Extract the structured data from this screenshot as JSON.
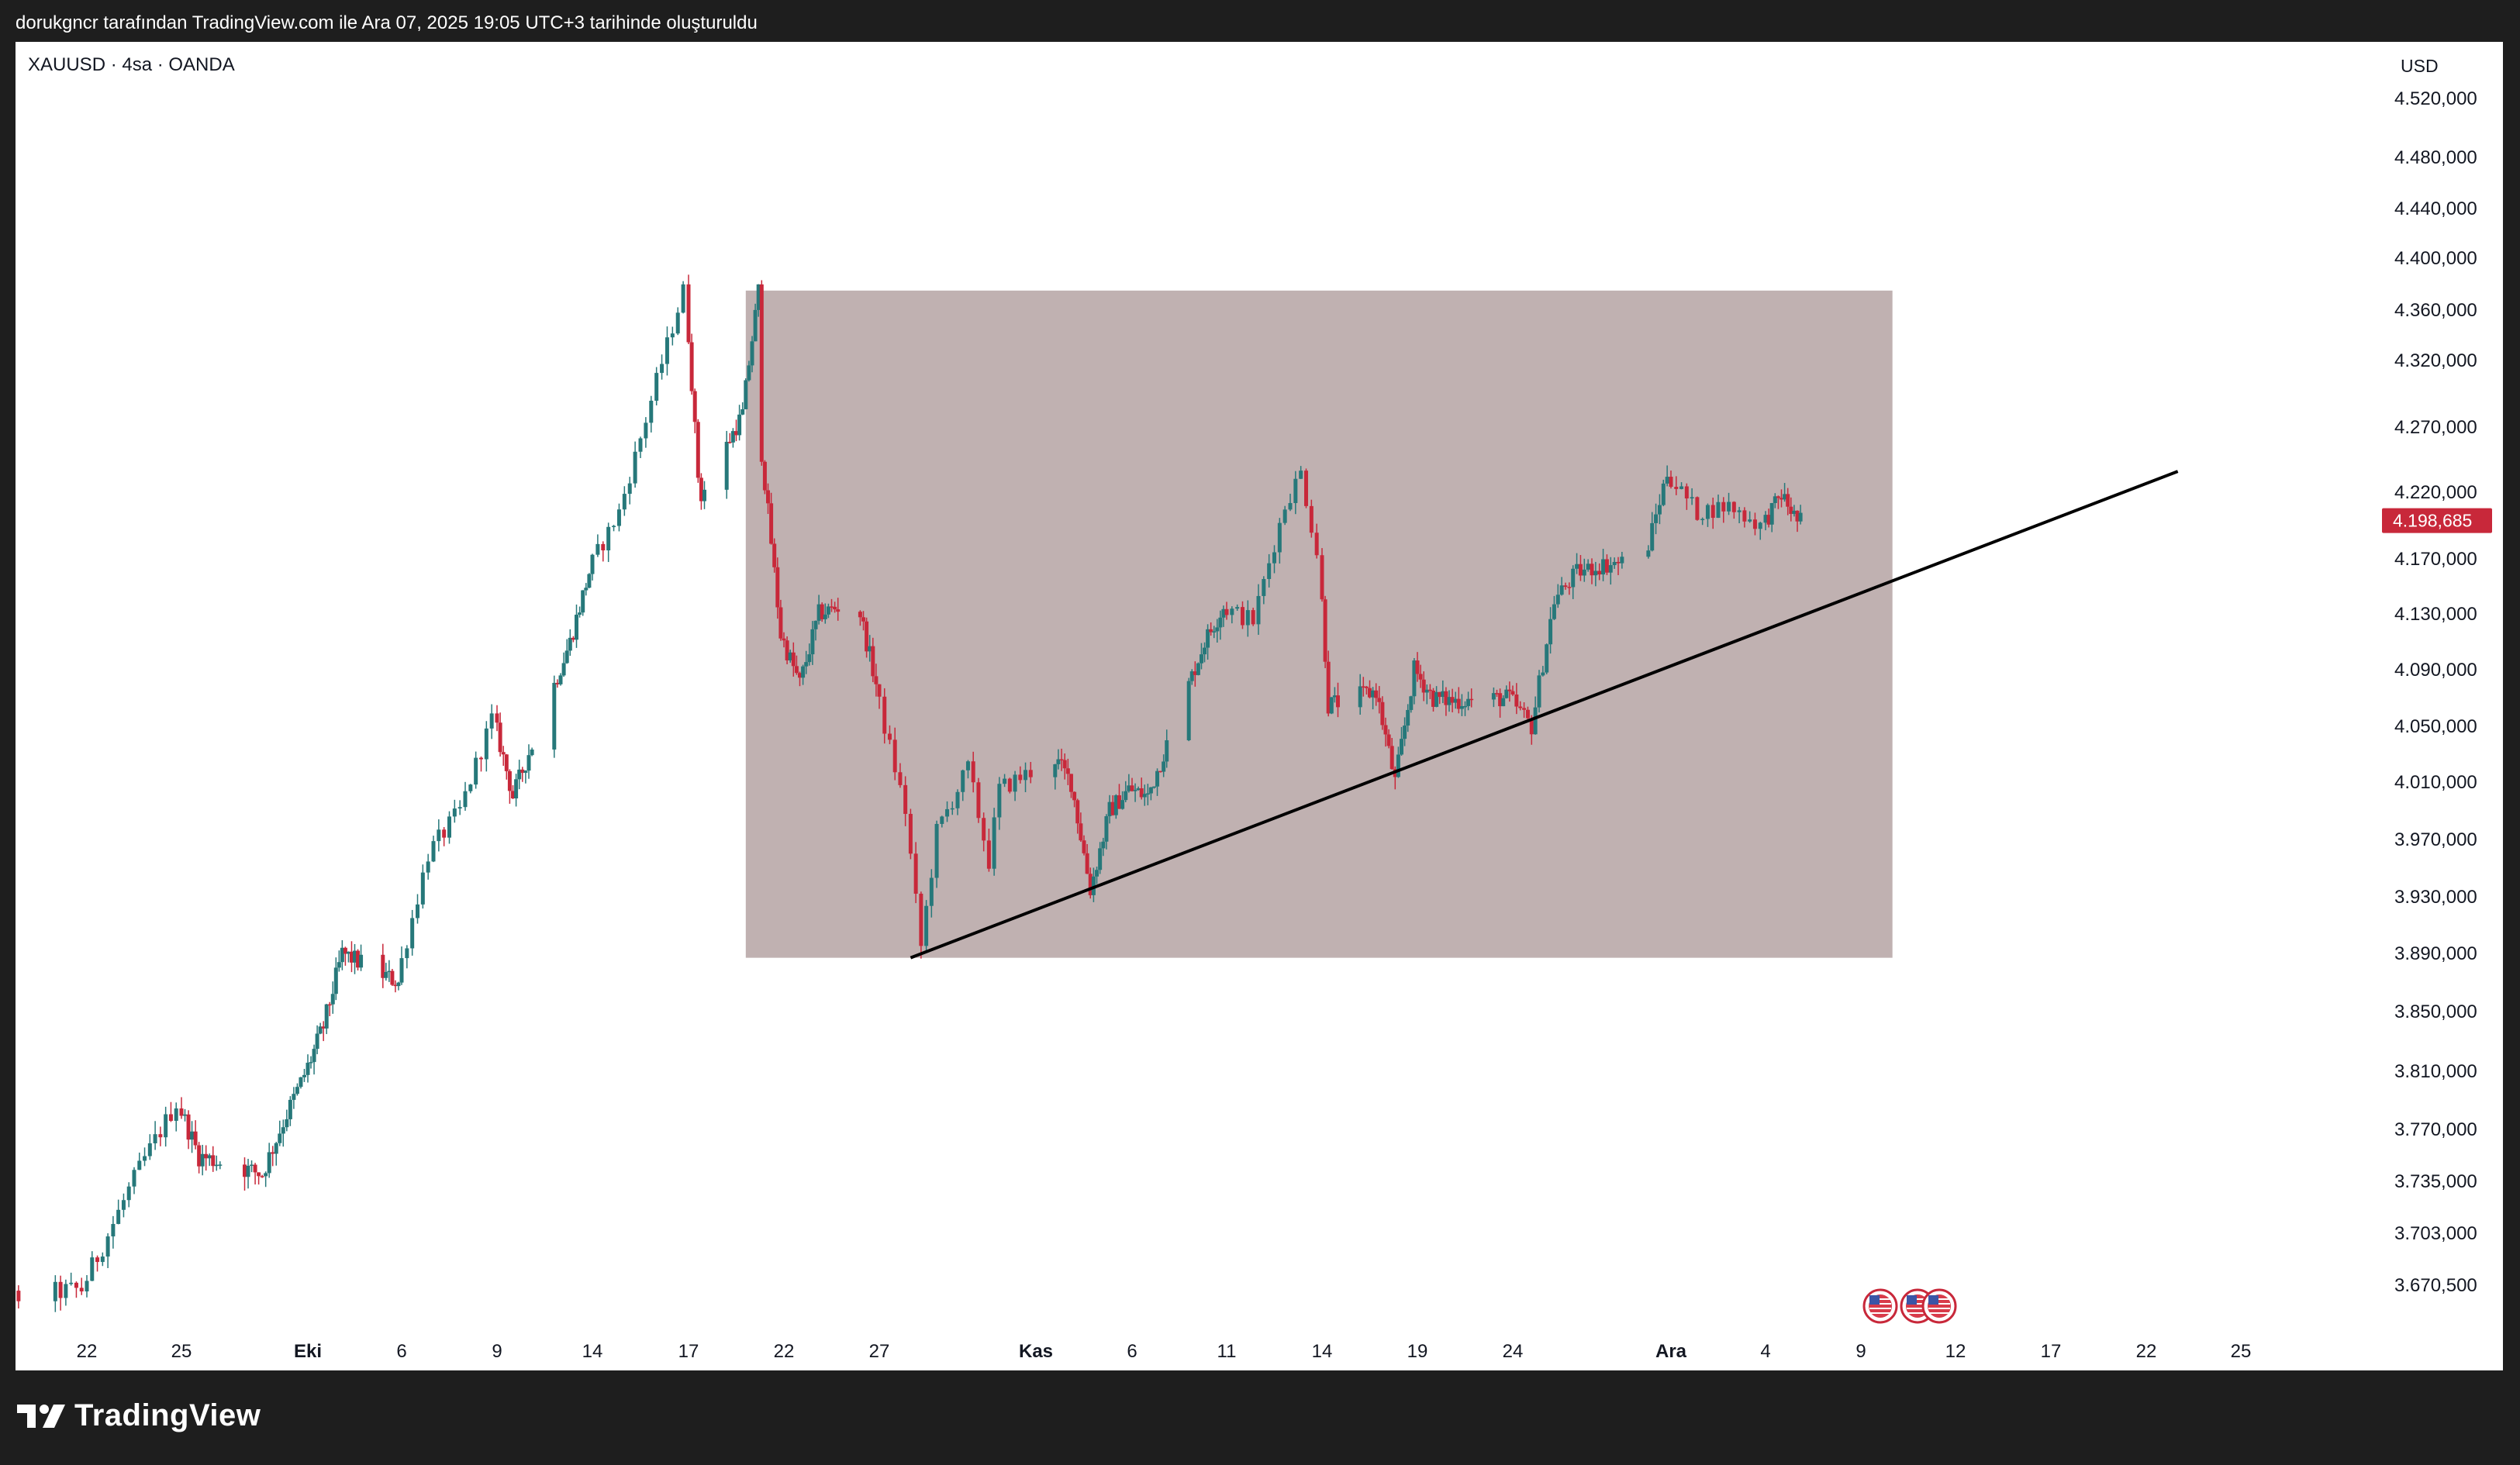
{
  "caption": "dorukgncr tarafından TradingView.com ile Ara 07, 2025 19:05 UTC+3 tarihinde oluşturuldu",
  "brand": "TradingView",
  "colors": {
    "background": "#1e1e1e",
    "up": "#26787a",
    "down": "#c8283a",
    "zone": "#c0b1b1",
    "price_tag": "#c8283a",
    "trendline": "#000000"
  },
  "chart_data": {
    "type": "candlestick",
    "title": "XAUUSD · 4sa · OANDA",
    "currency": "USD",
    "last_price": 4198.685,
    "last_price_label": "4.198,685",
    "y_axis": {
      "ylim": [
        3650,
        4540
      ],
      "ticks": [
        {
          "v": 4520,
          "label": "4.520,000"
        },
        {
          "v": 4480,
          "label": "4.480,000"
        },
        {
          "v": 4440,
          "label": "4.440,000"
        },
        {
          "v": 4400,
          "label": "4.400,000"
        },
        {
          "v": 4360,
          "label": "4.360,000"
        },
        {
          "v": 4320,
          "label": "4.320,000"
        },
        {
          "v": 4270,
          "label": "4.270,000"
        },
        {
          "v": 4220,
          "label": "4.220,000"
        },
        {
          "v": 4170,
          "label": "4.170,000"
        },
        {
          "v": 4130,
          "label": "4.130,000"
        },
        {
          "v": 4090,
          "label": "4.090,000"
        },
        {
          "v": 4050,
          "label": "4.050,000"
        },
        {
          "v": 4010,
          "label": "4.010,000"
        },
        {
          "v": 3970,
          "label": "3.970,000"
        },
        {
          "v": 3930,
          "label": "3.930,000"
        },
        {
          "v": 3890,
          "label": "3.890,000"
        },
        {
          "v": 3850,
          "label": "3.850,000"
        },
        {
          "v": 3810,
          "label": "3.810,000"
        },
        {
          "v": 3770,
          "label": "3.770,000"
        },
        {
          "v": 3735,
          "label": "3.735,000"
        },
        {
          "v": 3703,
          "label": "3.703,000"
        },
        {
          "v": 3670.5,
          "label": "3.670,500"
        }
      ]
    },
    "x_axis": {
      "ticks": [
        {
          "date": "2025-09-22",
          "label": "22",
          "bold": false
        },
        {
          "date": "2025-09-25",
          "label": "25",
          "bold": false
        },
        {
          "date": "2025-10-01",
          "label": "Eki",
          "bold": true
        },
        {
          "date": "2025-10-06",
          "label": "6",
          "bold": false
        },
        {
          "date": "2025-10-09",
          "label": "9",
          "bold": false
        },
        {
          "date": "2025-10-14",
          "label": "14",
          "bold": false
        },
        {
          "date": "2025-10-17",
          "label": "17",
          "bold": false
        },
        {
          "date": "2025-10-22",
          "label": "22",
          "bold": false
        },
        {
          "date": "2025-10-27",
          "label": "27",
          "bold": false
        },
        {
          "date": "2025-11-01",
          "label": "Kas",
          "bold": true
        },
        {
          "date": "2025-11-06",
          "label": "6",
          "bold": false
        },
        {
          "date": "2025-11-11",
          "label": "11",
          "bold": false
        },
        {
          "date": "2025-11-14",
          "label": "14",
          "bold": false
        },
        {
          "date": "2025-11-19",
          "label": "19",
          "bold": false
        },
        {
          "date": "2025-11-24",
          "label": "24",
          "bold": false
        },
        {
          "date": "2025-12-01",
          "label": "Ara",
          "bold": true
        },
        {
          "date": "2025-12-04",
          "label": "4",
          "bold": false
        },
        {
          "date": "2025-12-09",
          "label": "9",
          "bold": false
        },
        {
          "date": "2025-12-12",
          "label": "12",
          "bold": false
        },
        {
          "date": "2025-12-17",
          "label": "17",
          "bold": false
        },
        {
          "date": "2025-12-22",
          "label": "22",
          "bold": false
        },
        {
          "date": "2025-12-25",
          "label": "25",
          "bold": false
        }
      ]
    },
    "price_path": [
      [
        "2025-09-18",
        3658
      ],
      [
        "2025-09-22",
        3668
      ],
      [
        "2025-09-24",
        3750
      ],
      [
        "2025-09-25",
        3788
      ],
      [
        "2025-09-26",
        3752
      ],
      [
        "2025-09-29",
        3740
      ],
      [
        "2025-09-30",
        3775
      ],
      [
        "2025-10-02",
        3840
      ],
      [
        "2025-10-03",
        3890
      ],
      [
        "2025-10-06",
        3870
      ],
      [
        "2025-10-07",
        3960
      ],
      [
        "2025-10-08",
        3990
      ],
      [
        "2025-10-09",
        4055
      ],
      [
        "2025-10-10",
        4000
      ],
      [
        "2025-10-13",
        4110
      ],
      [
        "2025-10-14",
        4160
      ],
      [
        "2025-10-15",
        4205
      ],
      [
        "2025-10-16",
        4290
      ],
      [
        "2025-10-17",
        4375
      ],
      [
        "2025-10-17T18",
        4215
      ],
      [
        "2025-10-20",
        4280
      ],
      [
        "2025-10-20T20",
        4375
      ],
      [
        "2025-10-21",
        4250
      ],
      [
        "2025-10-22",
        4115
      ],
      [
        "2025-10-23",
        4080
      ],
      [
        "2025-10-24",
        4130
      ],
      [
        "2025-10-26",
        4140
      ],
      [
        "2025-10-27",
        4080
      ],
      [
        "2025-10-28",
        3990
      ],
      [
        "2025-10-28T12",
        3895
      ],
      [
        "2025-10-29",
        3975
      ],
      [
        "2025-10-30",
        4020
      ],
      [
        "2025-10-30T16",
        3955
      ],
      [
        "2025-10-31",
        4005
      ],
      [
        "2025-11-02",
        4030
      ],
      [
        "2025-11-03",
        4010
      ],
      [
        "2025-11-04",
        3935
      ],
      [
        "2025-11-05",
        3990
      ],
      [
        "2025-11-06",
        4005
      ],
      [
        "2025-11-07",
        4000
      ],
      [
        "2025-11-10",
        4110
      ],
      [
        "2025-11-11",
        4135
      ],
      [
        "2025-11-12",
        4125
      ],
      [
        "2025-11-13",
        4210
      ],
      [
        "2025-11-13T12",
        4235
      ],
      [
        "2025-11-14",
        4175
      ],
      [
        "2025-11-14T12",
        4065
      ],
      [
        "2025-11-17",
        4075
      ],
      [
        "2025-11-18",
        4010
      ],
      [
        "2025-11-19",
        4090
      ],
      [
        "2025-11-20",
        4070
      ],
      [
        "2025-11-21",
        4068
      ],
      [
        "2025-11-24",
        4070
      ],
      [
        "2025-11-25",
        4050
      ],
      [
        "2025-11-26",
        4140
      ],
      [
        "2025-11-27",
        4160
      ],
      [
        "2025-11-28",
        4165
      ],
      [
        "2025-11-30",
        4170
      ],
      [
        "2025-12-01",
        4235
      ],
      [
        "2025-12-02",
        4205
      ],
      [
        "2025-12-03",
        4210
      ],
      [
        "2025-12-04",
        4195
      ],
      [
        "2025-12-05",
        4218
      ],
      [
        "2025-12-05T20",
        4198.685
      ]
    ],
    "annotations": {
      "rectangle": {
        "date_start": "2025-10-20",
        "date_end": "2025-12-10",
        "price_low": 3887,
        "price_high": 4375
      },
      "trendline": {
        "start": [
          "2025-10-28",
          3887
        ],
        "end": [
          "2025-12-23",
          4236
        ]
      },
      "event_flags": [
        "2025-12-09",
        "2025-12-10",
        "2025-12-10"
      ]
    }
  }
}
